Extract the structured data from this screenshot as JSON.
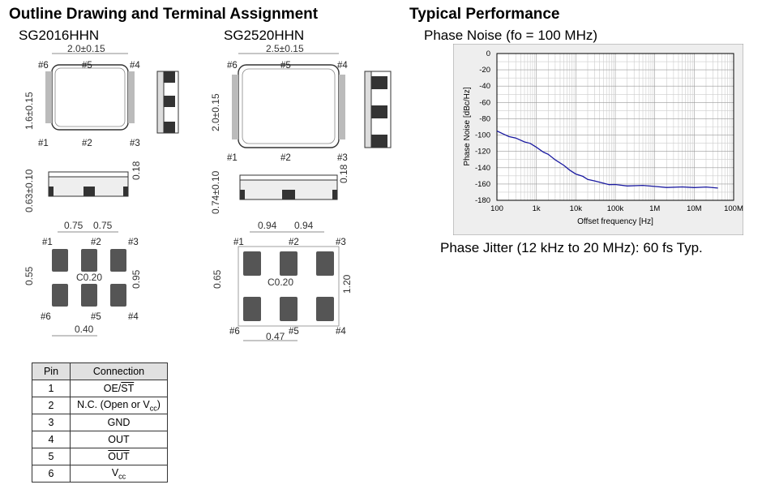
{
  "headings": {
    "outline": "Outline Drawing and Terminal Assignment",
    "performance": "Typical Performance"
  },
  "packages": [
    {
      "name": "SG2016HHN",
      "width_dim": "2.0±0.15",
      "height_dim": "1.6±0.15",
      "thickness_dim": "0.63±0.10",
      "lead_dim": "0.18",
      "pad_pitch_1": "0.75",
      "pad_pitch_2": "0.75",
      "pad_height": "0.55",
      "pad_span": "0.95",
      "chamfer": "C0.20",
      "pad_width": "0.40"
    },
    {
      "name": "SG2520HHN",
      "width_dim": "2.5±0.15",
      "height_dim": "2.0±0.15",
      "thickness_dim": "0.74±0.10",
      "lead_dim": "0.18",
      "pad_pitch_1": "0.94",
      "pad_pitch_2": "0.94",
      "pad_height": "0.65",
      "pad_span": "1.20",
      "chamfer": "C0.20",
      "pad_width": "0.47"
    }
  ],
  "pin_labels": [
    "#1",
    "#2",
    "#3",
    "#4",
    "#5",
    "#6"
  ],
  "pin_table": {
    "header": {
      "pin": "Pin",
      "connection": "Connection"
    },
    "rows": [
      {
        "pin": "1",
        "connection": "OE/ST"
      },
      {
        "pin": "2",
        "connection": "N.C. (Open or Vcc)"
      },
      {
        "pin": "3",
        "connection": "GND"
      },
      {
        "pin": "4",
        "connection": "OUT"
      },
      {
        "pin": "5",
        "connection": "OUT"
      },
      {
        "pin": "6",
        "connection": "Vcc"
      }
    ]
  },
  "chart_data": {
    "type": "line",
    "title": "Phase Noise (fo = 100 MHz)",
    "xlabel": "Offset frequency [Hz]",
    "ylabel": "Phase Noise [dBc/Hz]",
    "xscale": "log",
    "xlim": [
      100,
      100000000
    ],
    "ylim": [
      -180,
      0
    ],
    "x_tick_labels": [
      "100",
      "1k",
      "10k",
      "100k",
      "1M",
      "10M",
      "100M"
    ],
    "y_tick_labels": [
      "0",
      "-20",
      "-40",
      "-60",
      "-80",
      "-100",
      "-120",
      "-140",
      "-160",
      "-180"
    ],
    "grid": true,
    "series": [
      {
        "color": "#1a1aa0",
        "x": [
          100,
          150,
          200,
          300,
          500,
          700,
          1000,
          1500,
          2000,
          3000,
          5000,
          7000,
          10000,
          15000,
          20000,
          30000,
          50000,
          70000,
          100000,
          200000,
          500000,
          1000000,
          2000000,
          5000000,
          10000000,
          20000000,
          40000000
        ],
        "y": [
          -95,
          -99,
          -101,
          -104,
          -108,
          -111,
          -115,
          -120,
          -124,
          -130,
          -138,
          -143,
          -147,
          -151,
          -154,
          -157,
          -159,
          -160,
          -161,
          -162,
          -162.5,
          -163,
          -163.5,
          -164,
          -164,
          -164.5,
          -165
        ]
      }
    ]
  },
  "jitter": "Phase Jitter (12 kHz to 20 MHz): 60 fs Typ."
}
